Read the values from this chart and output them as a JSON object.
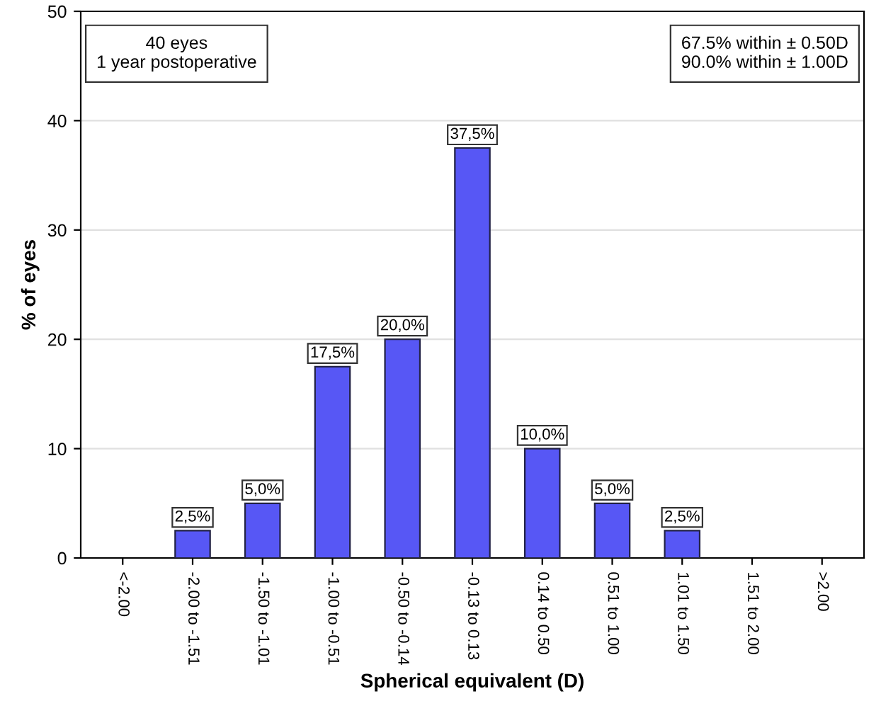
{
  "chart_data": {
    "type": "bar",
    "xlabel": "Spherical equivalent (D)",
    "ylabel": "% of eyes",
    "categories": [
      "<-2.00",
      "-2.00 to -1.51",
      "-1.50 to -1.01",
      "-1.00 to -0.51",
      "-0.50 to -0.14",
      "-0.13 to 0.13",
      "0.14 to 0.50",
      "0.51 to 1.00",
      "1.01 to 1.50",
      "1.51 to 2.00",
      ">2.00"
    ],
    "values": [
      0,
      2.5,
      5.0,
      17.5,
      20.0,
      37.5,
      10.0,
      5.0,
      2.5,
      0,
      0
    ],
    "value_labels": [
      null,
      "2,5%",
      "5,0%",
      "17,5%",
      "20,0%",
      "37,5%",
      "10,0%",
      "5,0%",
      "2,5%",
      null,
      null
    ],
    "color": "#5757f5",
    "ylim": [
      0,
      50
    ],
    "yticks": [
      0,
      10,
      20,
      30,
      40,
      50
    ],
    "grid": "y",
    "annotations": [
      "40 eyes\n1 year postoperative",
      "67.5% within ± 0.50D\n90.0% within ± 1.00D"
    ]
  }
}
